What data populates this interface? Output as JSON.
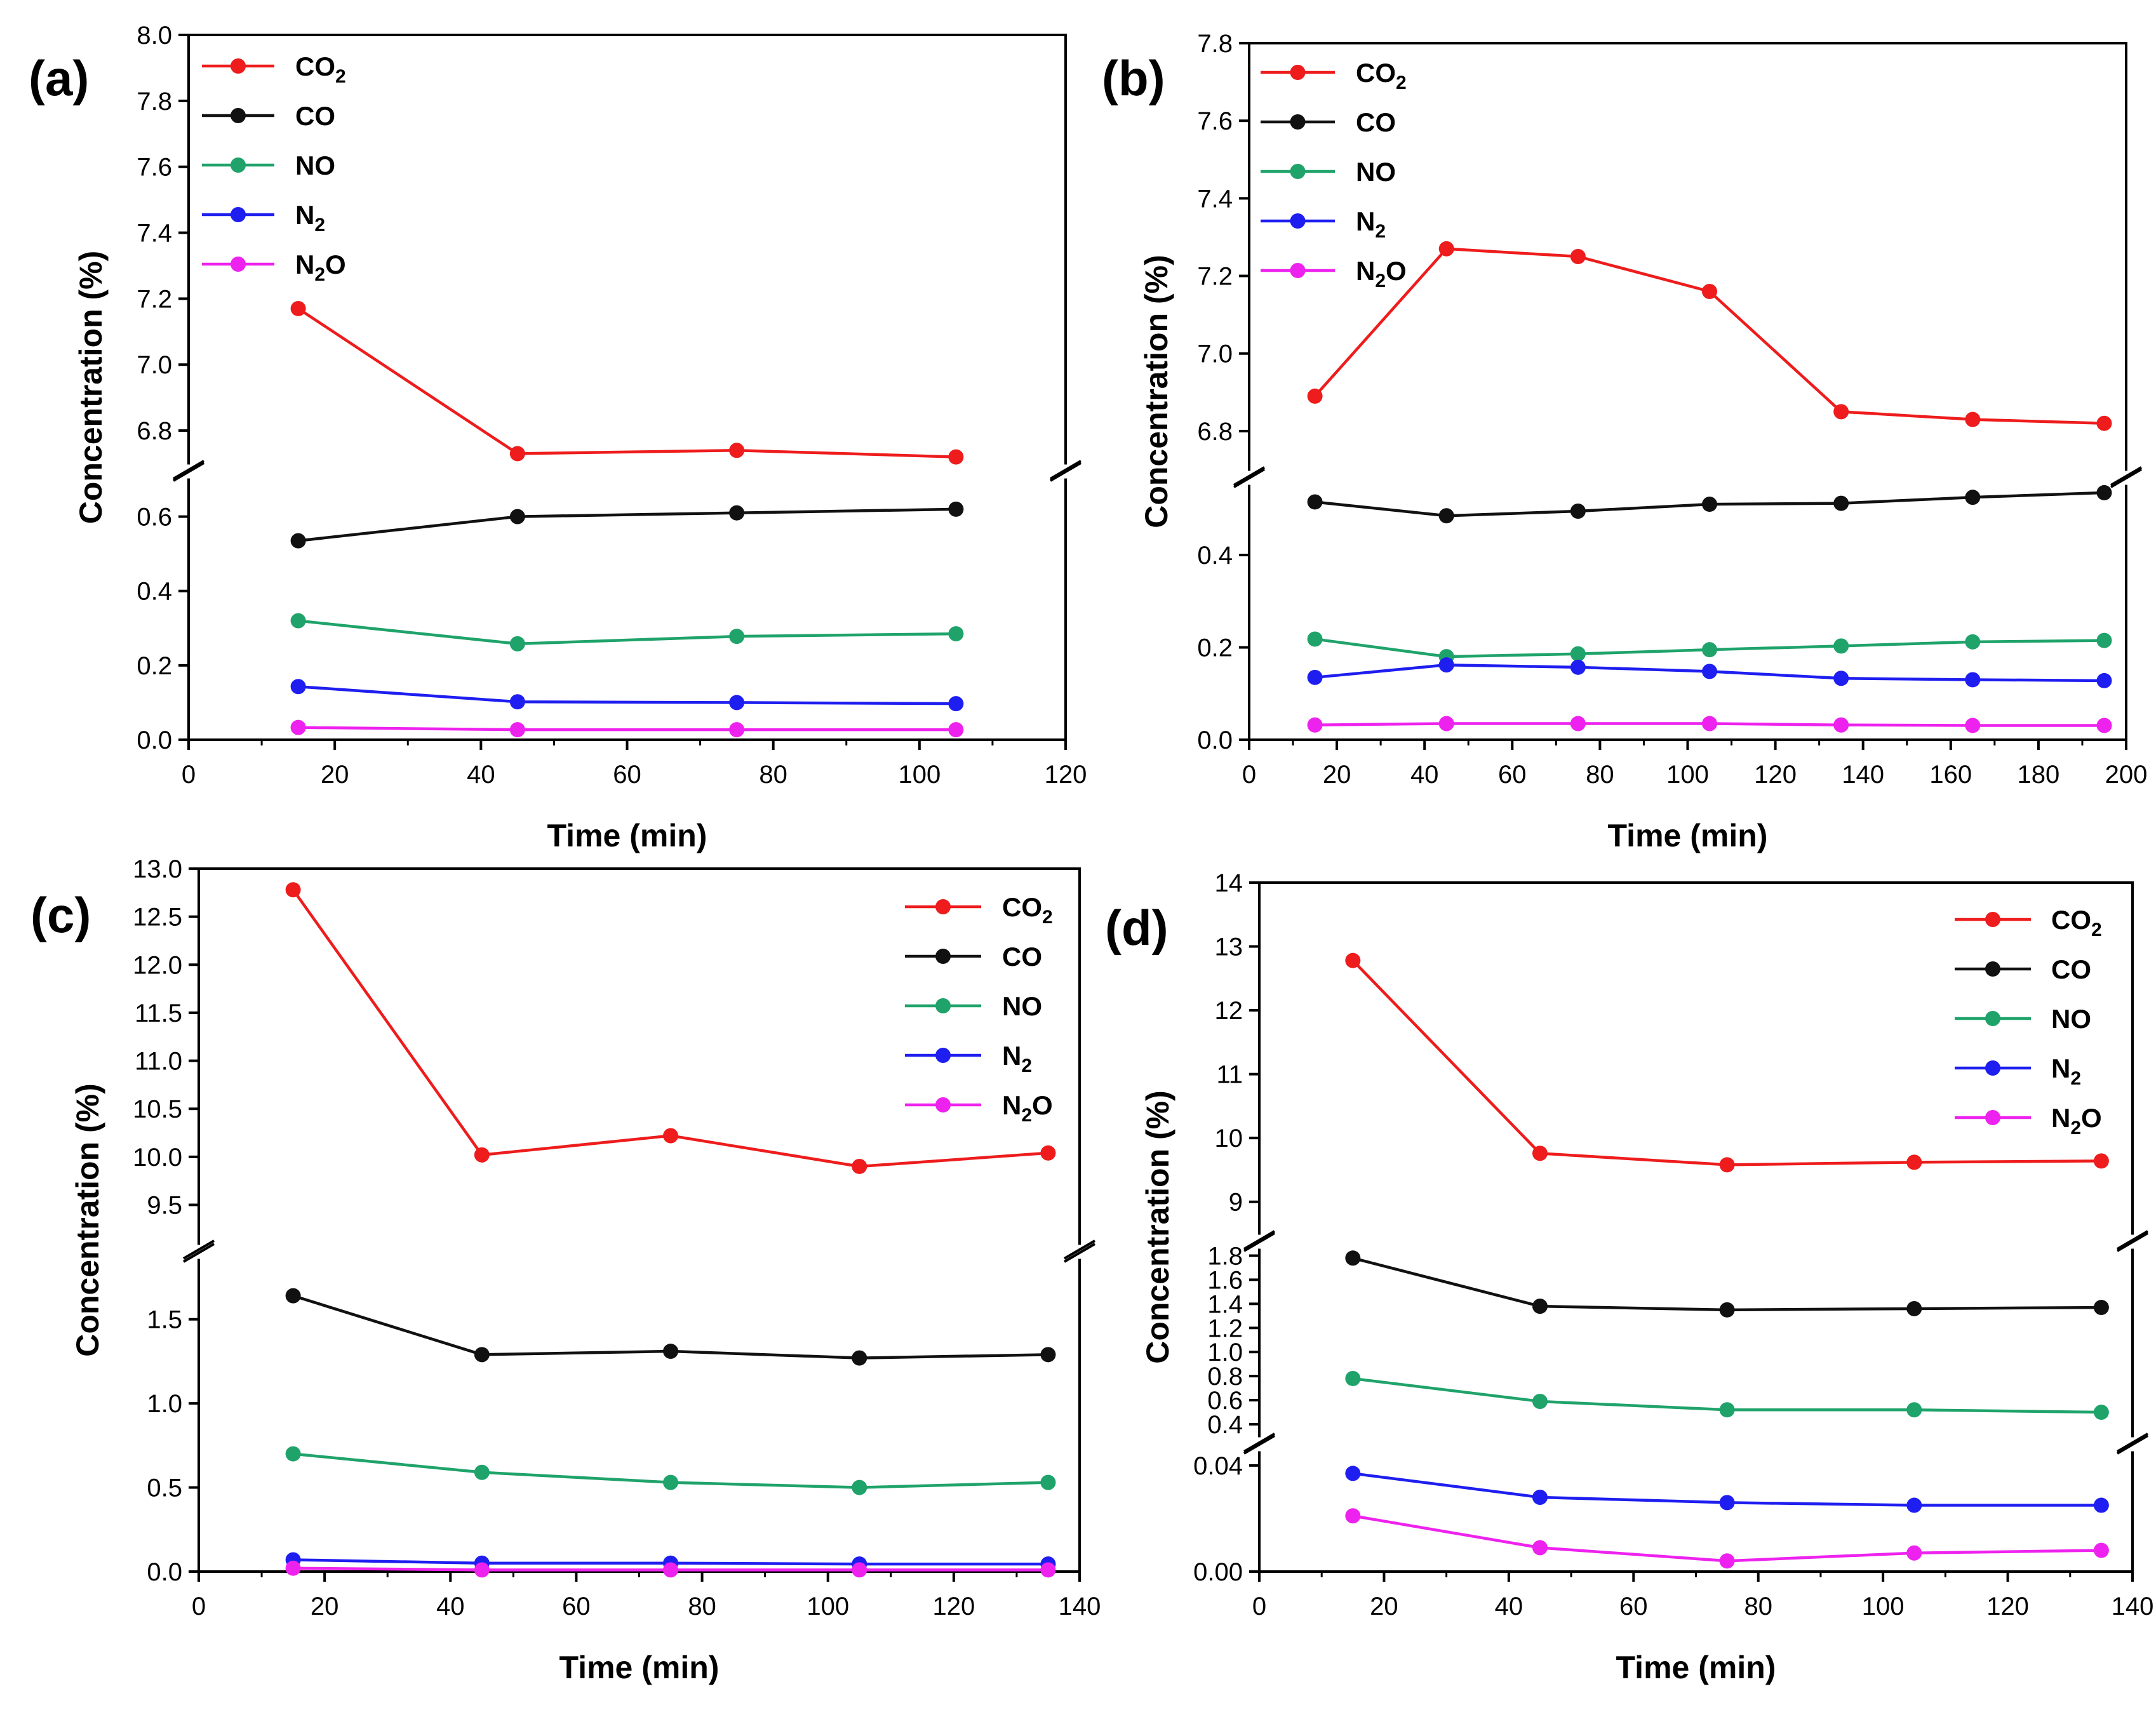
{
  "figure": {
    "description_label": "Four-panel gas concentration versus time figure"
  },
  "colors": {
    "CO2": "#ee1c1c",
    "CO": "#111111",
    "NO": "#1fa36a",
    "N2": "#1e1ef0",
    "N2O": "#ee22ee"
  },
  "chart_data": [
    {
      "type": "line",
      "panel_label": "(a)",
      "xlabel": "Time (min)",
      "ylabel": "Concentration (%)",
      "xlim": [
        0,
        120
      ],
      "xticks": [
        "0",
        "20",
        "40",
        "60",
        "80",
        "100",
        "120"
      ],
      "y_segments": [
        {
          "range": [
            0.0,
            0.7
          ],
          "ticks": [
            "0.0",
            "0.2",
            "0.4",
            "0.6"
          ]
        },
        {
          "range": [
            6.7,
            8.0
          ],
          "ticks": [
            "6.8",
            "7.0",
            "7.2",
            "7.4",
            "7.6",
            "7.8",
            "8.0"
          ]
        }
      ],
      "legend": {
        "position": "top-left"
      },
      "x": [
        15,
        45,
        75,
        105
      ],
      "series": [
        {
          "key": "CO2",
          "name": "CO2",
          "base": "CO",
          "sub": "2",
          "after": "",
          "values": [
            7.17,
            6.73,
            6.74,
            6.72
          ]
        },
        {
          "key": "CO",
          "name": "CO",
          "base": "CO",
          "sub": "",
          "after": "",
          "values": [
            0.535,
            0.6,
            0.61,
            0.62
          ]
        },
        {
          "key": "NO",
          "name": "NO",
          "base": "NO",
          "sub": "",
          "after": "",
          "values": [
            0.32,
            0.258,
            0.278,
            0.285
          ]
        },
        {
          "key": "N2",
          "name": "N2",
          "base": "N",
          "sub": "2",
          "after": "",
          "values": [
            0.143,
            0.102,
            0.1,
            0.097
          ]
        },
        {
          "key": "N2O",
          "name": "N2O",
          "base": "N",
          "sub": "2",
          "after": "O",
          "values": [
            0.033,
            0.027,
            0.027,
            0.027
          ]
        }
      ]
    },
    {
      "type": "line",
      "panel_label": "(b)",
      "xlabel": "Time (min)",
      "ylabel": "Concentration (%)",
      "xlim": [
        0,
        200
      ],
      "xticks": [
        "0",
        "20",
        "40",
        "60",
        "80",
        "100",
        "120",
        "140",
        "160",
        "180",
        "200"
      ],
      "y_segments": [
        {
          "range": [
            0.0,
            0.55
          ],
          "ticks": [
            "0.0",
            "0.2",
            "0.4"
          ]
        },
        {
          "range": [
            6.7,
            7.8
          ],
          "ticks": [
            "6.8",
            "7.0",
            "7.2",
            "7.4",
            "7.6",
            "7.8"
          ]
        }
      ],
      "legend": {
        "position": "top-left"
      },
      "x": [
        15,
        45,
        75,
        105,
        135,
        165,
        195
      ],
      "series": [
        {
          "key": "CO2",
          "name": "CO2",
          "base": "CO",
          "sub": "2",
          "after": "",
          "values": [
            6.89,
            7.27,
            7.25,
            7.16,
            6.85,
            6.83,
            6.82
          ]
        },
        {
          "key": "CO",
          "name": "CO",
          "base": "CO",
          "sub": "",
          "after": "",
          "values": [
            0.515,
            0.485,
            0.495,
            0.51,
            0.512,
            0.525,
            0.535
          ]
        },
        {
          "key": "NO",
          "name": "NO",
          "base": "NO",
          "sub": "",
          "after": "",
          "values": [
            0.218,
            0.18,
            0.186,
            0.195,
            0.203,
            0.212,
            0.215
          ]
        },
        {
          "key": "N2",
          "name": "N2",
          "base": "N",
          "sub": "2",
          "after": "",
          "values": [
            0.135,
            0.162,
            0.157,
            0.148,
            0.133,
            0.13,
            0.128
          ]
        },
        {
          "key": "N2O",
          "name": "N2O",
          "base": "N",
          "sub": "2",
          "after": "O",
          "values": [
            0.032,
            0.035,
            0.035,
            0.035,
            0.032,
            0.031,
            0.031
          ]
        }
      ]
    },
    {
      "type": "line",
      "panel_label": "(c)",
      "xlabel": "Time (min)",
      "ylabel": "Concentration (%)",
      "xlim": [
        0,
        140
      ],
      "xticks": [
        "0",
        "20",
        "40",
        "60",
        "80",
        "100",
        "120",
        "140"
      ],
      "y_segments": [
        {
          "range": [
            0.0,
            1.85
          ],
          "ticks": [
            "0.0",
            "0.5",
            "1.0",
            "1.5"
          ]
        },
        {
          "range": [
            9.1,
            13.0
          ],
          "ticks": [
            "9.5",
            "10.0",
            "10.5",
            "11.0",
            "11.5",
            "12.0",
            "12.5",
            "13.0"
          ]
        }
      ],
      "legend": {
        "position": "top-right"
      },
      "x": [
        15,
        45,
        75,
        105,
        135
      ],
      "series": [
        {
          "key": "CO2",
          "name": "CO2",
          "base": "CO",
          "sub": "2",
          "after": "",
          "values": [
            12.78,
            10.02,
            10.22,
            9.9,
            10.04
          ]
        },
        {
          "key": "CO",
          "name": "CO",
          "base": "CO",
          "sub": "",
          "after": "",
          "values": [
            1.64,
            1.29,
            1.31,
            1.27,
            1.29
          ]
        },
        {
          "key": "NO",
          "name": "NO",
          "base": "NO",
          "sub": "",
          "after": "",
          "values": [
            0.7,
            0.59,
            0.53,
            0.5,
            0.53
          ]
        },
        {
          "key": "N2",
          "name": "N2",
          "base": "N",
          "sub": "2",
          "after": "",
          "values": [
            0.07,
            0.05,
            0.05,
            0.045,
            0.045
          ]
        },
        {
          "key": "N2O",
          "name": "N2O",
          "base": "N",
          "sub": "2",
          "after": "O",
          "values": [
            0.02,
            0.01,
            0.01,
            0.01,
            0.01
          ]
        }
      ]
    },
    {
      "type": "line",
      "panel_label": "(d)",
      "xlabel": "Time (min)",
      "ylabel": "Concentration (%)",
      "xlim": [
        0,
        140
      ],
      "xticks": [
        "0",
        "20",
        "40",
        "60",
        "80",
        "100",
        "120",
        "140"
      ],
      "y_segments": [
        {
          "range": [
            0.0,
            0.045
          ],
          "ticks": [
            "0.00",
            "0.04"
          ]
        },
        {
          "range": [
            0.3,
            1.85
          ],
          "ticks": [
            "0.4",
            "0.6",
            "0.8",
            "1.0",
            "1.2",
            "1.4",
            "1.6",
            "1.8"
          ]
        },
        {
          "range": [
            8.5,
            14.0
          ],
          "ticks": [
            "9",
            "10",
            "11",
            "12",
            "13",
            "14"
          ]
        }
      ],
      "legend": {
        "position": "top-right"
      },
      "x": [
        15,
        45,
        75,
        105,
        135
      ],
      "series": [
        {
          "key": "CO2",
          "name": "CO2",
          "base": "CO",
          "sub": "2",
          "after": "",
          "values": [
            12.78,
            9.76,
            9.58,
            9.62,
            9.64
          ]
        },
        {
          "key": "CO",
          "name": "CO",
          "base": "CO",
          "sub": "",
          "after": "",
          "values": [
            1.78,
            1.38,
            1.35,
            1.36,
            1.37
          ]
        },
        {
          "key": "NO",
          "name": "NO",
          "base": "NO",
          "sub": "",
          "after": "",
          "values": [
            0.78,
            0.59,
            0.52,
            0.52,
            0.5
          ]
        },
        {
          "key": "N2",
          "name": "N2",
          "base": "N",
          "sub": "2",
          "after": "",
          "values": [
            0.037,
            0.028,
            0.026,
            0.025,
            0.025
          ]
        },
        {
          "key": "N2O",
          "name": "N2O",
          "base": "N",
          "sub": "2",
          "after": "O",
          "values": [
            0.021,
            0.009,
            0.004,
            0.007,
            0.008
          ]
        }
      ]
    }
  ]
}
